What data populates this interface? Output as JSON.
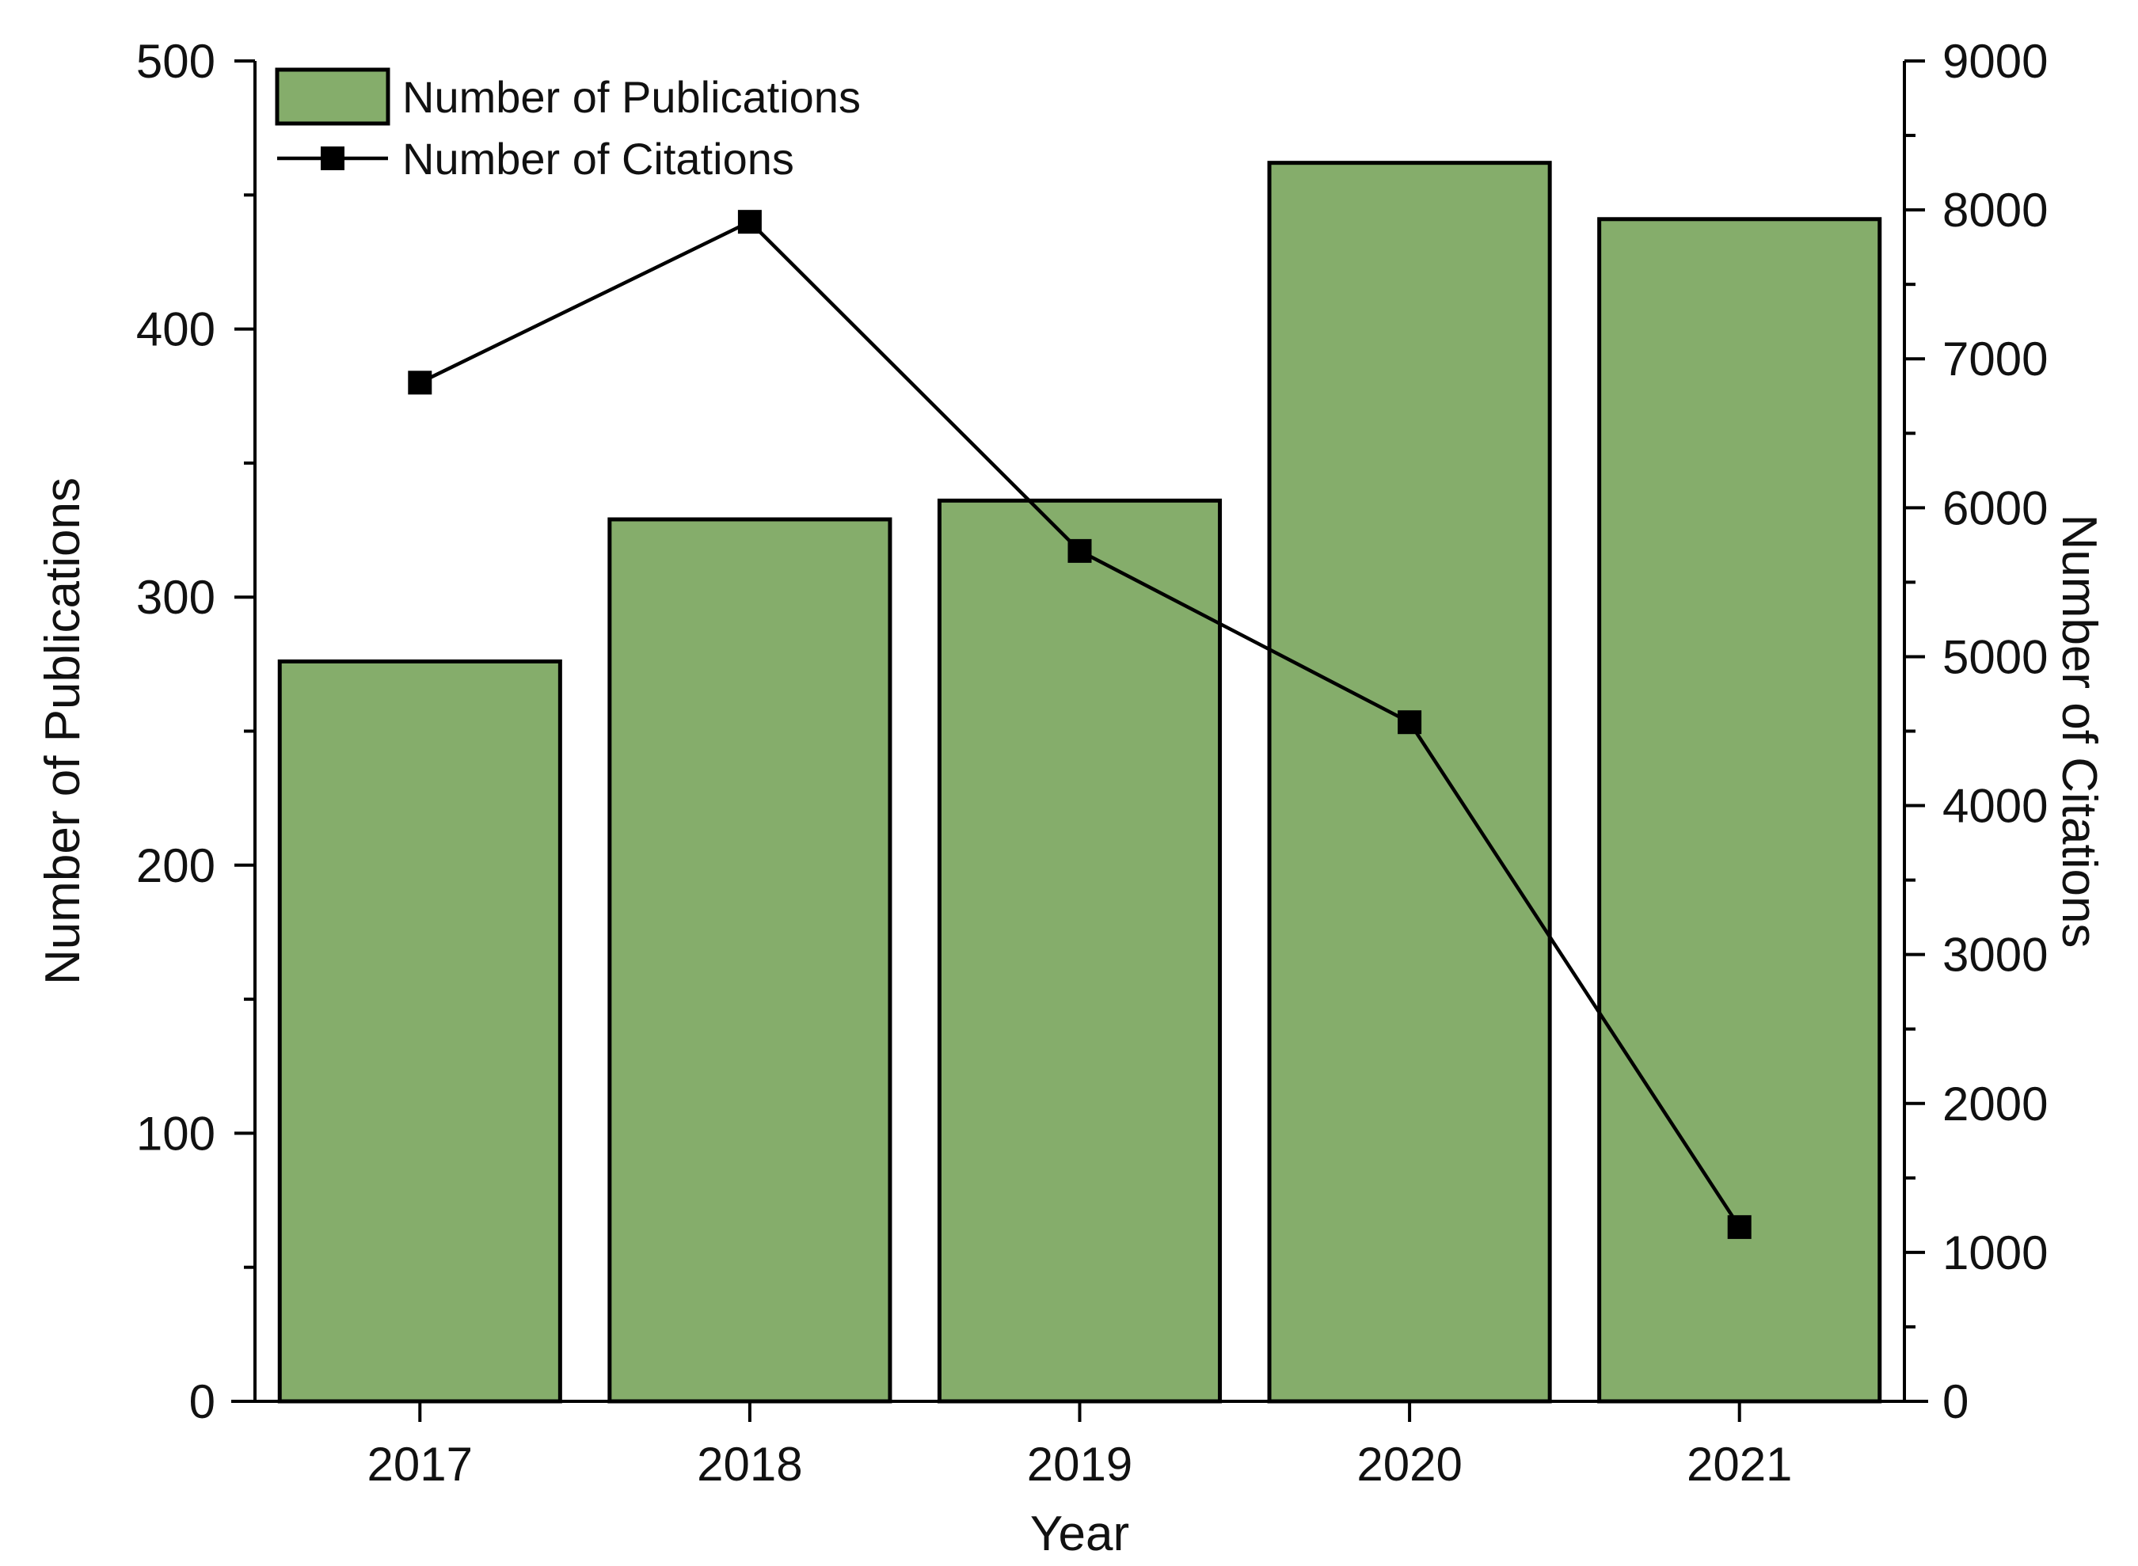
{
  "chart_data": {
    "type": "bar",
    "x": {
      "label": "Year",
      "categories": [
        "2017",
        "2018",
        "2019",
        "2020",
        "2021"
      ]
    },
    "y_left": {
      "label": "Number of Publications",
      "range": [
        0,
        500
      ],
      "ticks": [
        0,
        100,
        200,
        300,
        400,
        500
      ],
      "tick_labels": [
        "0",
        "100",
        "200",
        "300",
        "400",
        "500"
      ]
    },
    "y_right": {
      "label": "Number of Citations",
      "range": [
        0,
        9000
      ],
      "ticks": [
        0,
        1000,
        2000,
        3000,
        4000,
        5000,
        6000,
        7000,
        8000,
        9000
      ],
      "tick_labels": [
        "0",
        "1000",
        "2000",
        "3000",
        "4000",
        "5000",
        "6000",
        "7000",
        "8000",
        "9000"
      ]
    },
    "series": [
      {
        "name": "Number of Publications",
        "type": "bar",
        "axis": "left",
        "color": "#85ad6b",
        "values": [
          276,
          329,
          336,
          462,
          441
        ]
      },
      {
        "name": "Number of Citations",
        "type": "line",
        "axis": "right",
        "marker": "square",
        "color": "#000000",
        "values": [
          6840,
          7920,
          5710,
          4560,
          1170
        ]
      }
    ],
    "legend": {
      "position": "top-left"
    },
    "grid": false
  }
}
